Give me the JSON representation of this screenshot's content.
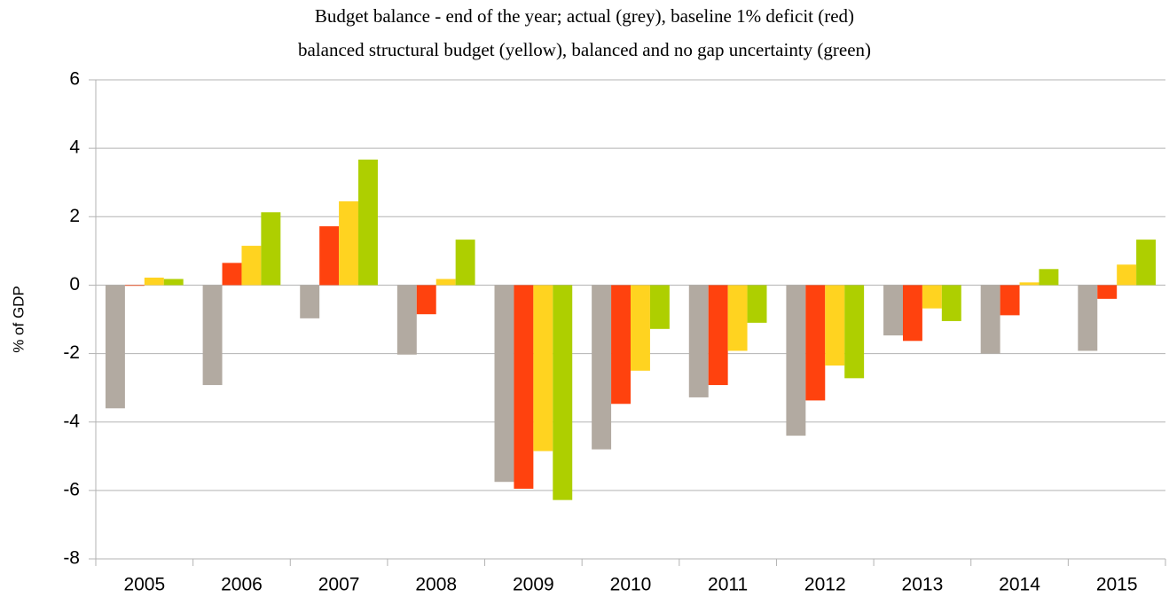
{
  "chart_data": {
    "type": "bar",
    "title": [
      "Budget balance - end of the year; actual (grey), baseline 1% deficit (red)",
      "balanced structural budget (yellow), balanced and no gap uncertainty (green)"
    ],
    "y_label": "% of GDP",
    "categories": [
      "2005",
      "2006",
      "2007",
      "2008",
      "2009",
      "2010",
      "2011",
      "2012",
      "2013",
      "2014",
      "2015"
    ],
    "series": [
      {
        "color": "#b2aaa1",
        "values": [
          -3.6,
          -2.92,
          -0.97,
          -2.03,
          -5.75,
          -4.8,
          -3.28,
          -4.4,
          -1.47,
          -2.0,
          -1.92
        ]
      },
      {
        "color": "#ff420e",
        "values": [
          -0.02,
          0.65,
          1.72,
          -0.85,
          -5.95,
          -3.47,
          -2.92,
          -3.37,
          -1.63,
          -0.88,
          -0.4
        ]
      },
      {
        "color": "#ffd320",
        "values": [
          0.22,
          1.15,
          2.45,
          0.18,
          -4.85,
          -2.5,
          -1.92,
          -2.35,
          -0.68,
          0.08,
          0.6
        ]
      },
      {
        "color": "#aecf00",
        "values": [
          0.18,
          2.13,
          3.67,
          1.33,
          -6.28,
          -1.28,
          -1.1,
          -2.72,
          -1.05,
          0.47,
          1.33
        ]
      }
    ],
    "ylim": [
      -8,
      6
    ],
    "yticks": [
      -8,
      -6,
      -4,
      -2,
      0,
      2,
      4,
      6
    ],
    "grid": true
  }
}
